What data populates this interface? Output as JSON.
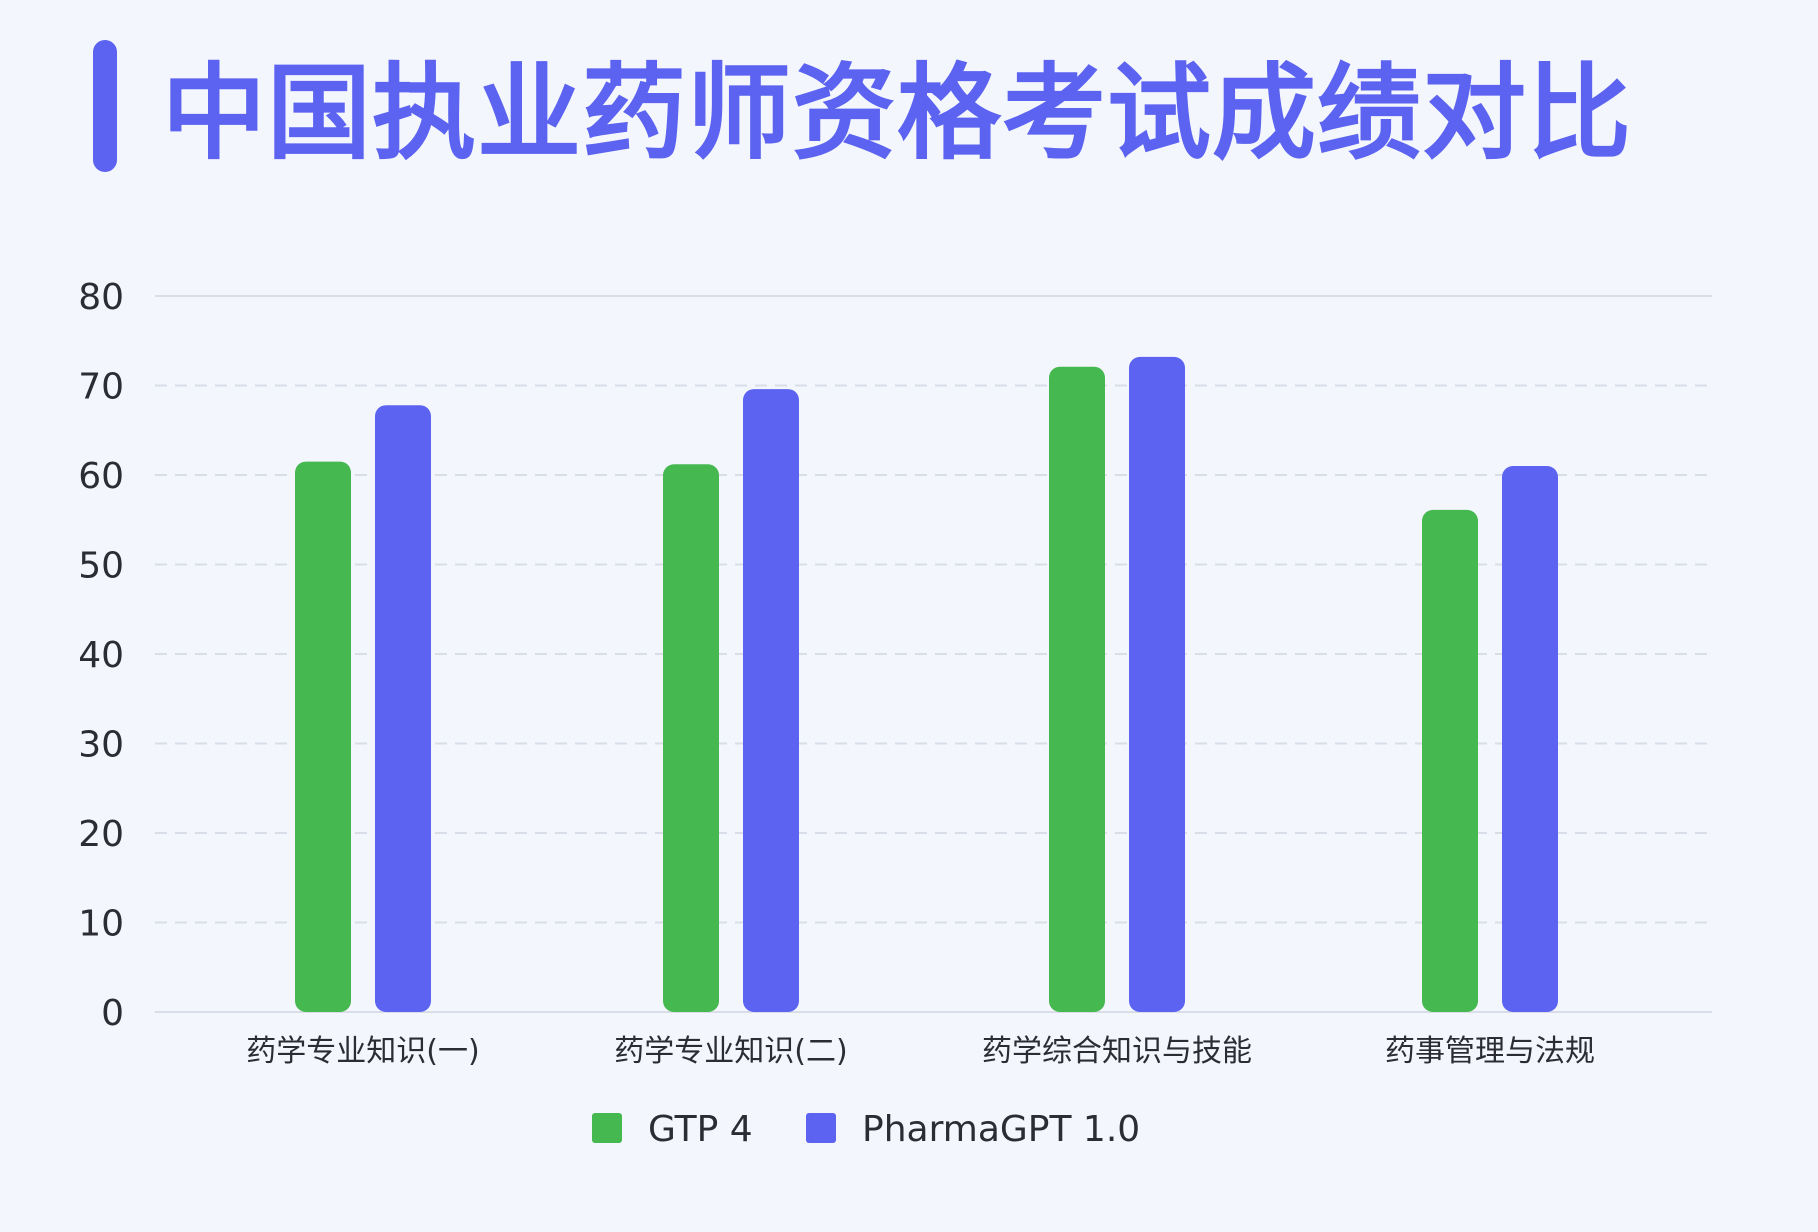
{
  "title": "中国执业药师资格考试成绩对比",
  "colors": {
    "accent": "#5b63f0",
    "gtp4": "#45b84f",
    "pharmagpt": "#5b63f0",
    "grid": "#d9dde8",
    "axis_text": "#2b2d33"
  },
  "chart_data": {
    "type": "bar",
    "title": "中国执业药师资格考试成绩对比",
    "xlabel": "",
    "ylabel": "",
    "ylim": [
      0,
      80
    ],
    "yticks": [
      0,
      10,
      20,
      30,
      40,
      50,
      60,
      70,
      80
    ],
    "grid": true,
    "legend_position": "bottom-center",
    "categories": [
      "药学专业知识(一)",
      "药学专业知识(二)",
      "药学综合知识与技能",
      "药事管理与法规"
    ],
    "series": [
      {
        "name": "GTP 4",
        "color": "#45b84f",
        "values": [
          61.5,
          61.2,
          72.1,
          56.1
        ]
      },
      {
        "name": "PharmaGPT 1.0",
        "color": "#5b63f0",
        "values": [
          67.8,
          69.6,
          73.2,
          61.0
        ]
      }
    ]
  }
}
